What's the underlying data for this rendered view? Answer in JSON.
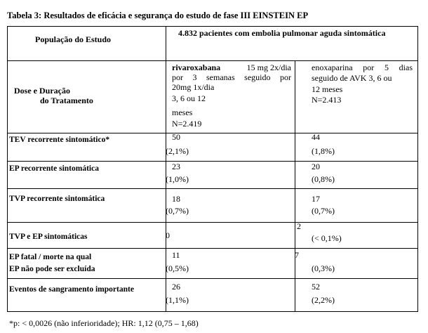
{
  "title": "Tabela 3: Resultados de eficácia e segurança do estudo de fase III EINSTEIN EP",
  "header": {
    "population_label": "População do Estudo",
    "population_value": "4.832 pacientes com embolia pulmonar aguda sintomática"
  },
  "dose_row": {
    "label_line1": "Dose    e    Duração",
    "label_line2": "do Tratamento",
    "rivaroxaban": {
      "name": "rivaroxabana",
      "line1_rest": "15  mg  2x/dia",
      "line2": "por  3  semanas  seguido  por",
      "line3": "20mg 1x/dia",
      "line4": "3,  6   ou   12",
      "line5": "meses",
      "n": "N=2.419"
    },
    "enoxaparin": {
      "line1": "enoxaparina  por  5  dias",
      "line2": "seguido de AVK 3,  6 ou",
      "line3": "12    meses",
      "n": "N=2.413"
    }
  },
  "rows": [
    {
      "label": "TEV recorrente sintomático*",
      "riva_n": "50",
      "riva_pct": "(2,1%)",
      "enox_n": "44",
      "enox_pct": "(1,8%)"
    },
    {
      "label": "EP recorrente sintomática",
      "riva_n": "23",
      "riva_pct": "(1,0%)",
      "enox_n": "20",
      "enox_pct": "(0,8%)"
    },
    {
      "label": "TVP recorrente sintomática",
      "riva_n": "18",
      "riva_pct": "(0,7%)",
      "enox_n": "17",
      "enox_pct": "(0,7%)"
    },
    {
      "label": "TVP e EP sintomáticas",
      "riva_n": "0",
      "riva_pct": "",
      "enox_n": "2",
      "enox_pct": "(< 0,1%)"
    },
    {
      "label": "EP fatal / morte na qual",
      "label2": "EP não pode ser excluída",
      "riva_n": "11",
      "riva_pct": "(0,5%)",
      "enox_n": "7",
      "enox_pct": "(0,3%)"
    },
    {
      "label": "Eventos de sangramento importante",
      "riva_n": "26",
      "riva_pct": "(1,1%)",
      "enox_n": "52",
      "enox_pct": "(2,2%)"
    }
  ],
  "footnote": "*p: < 0,0026 (não inferioridade); HR: 1,12 (0,75 – 1,68)"
}
